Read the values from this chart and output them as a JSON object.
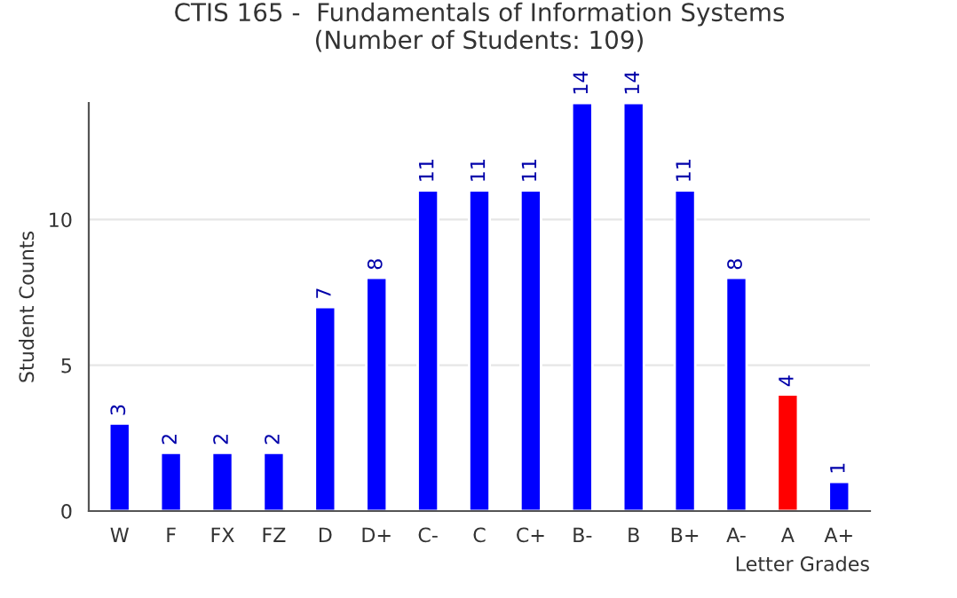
{
  "chart_data": {
    "type": "bar",
    "title": "CTIS 165 -  Fundamentals of Information Systems\n(Number of Students: 109)",
    "xlabel": "Letter Grades",
    "ylabel": "Student Counts",
    "categories": [
      "W",
      "F",
      "FX",
      "FZ",
      "D",
      "D+",
      "C-",
      "C",
      "C+",
      "B-",
      "B",
      "B+",
      "A-",
      "A",
      "A+"
    ],
    "values": [
      3,
      2,
      2,
      2,
      7,
      8,
      11,
      11,
      11,
      14,
      14,
      11,
      8,
      4,
      1
    ],
    "colors": [
      "#0000ff",
      "#0000ff",
      "#0000ff",
      "#0000ff",
      "#0000ff",
      "#0000ff",
      "#0000ff",
      "#0000ff",
      "#0000ff",
      "#0000ff",
      "#0000ff",
      "#0000ff",
      "#0000ff",
      "#ff0000",
      "#0000ff"
    ],
    "ylim": [
      0,
      14
    ],
    "yticks": [
      0,
      5,
      10
    ],
    "grid": "y",
    "data_labels": true
  }
}
